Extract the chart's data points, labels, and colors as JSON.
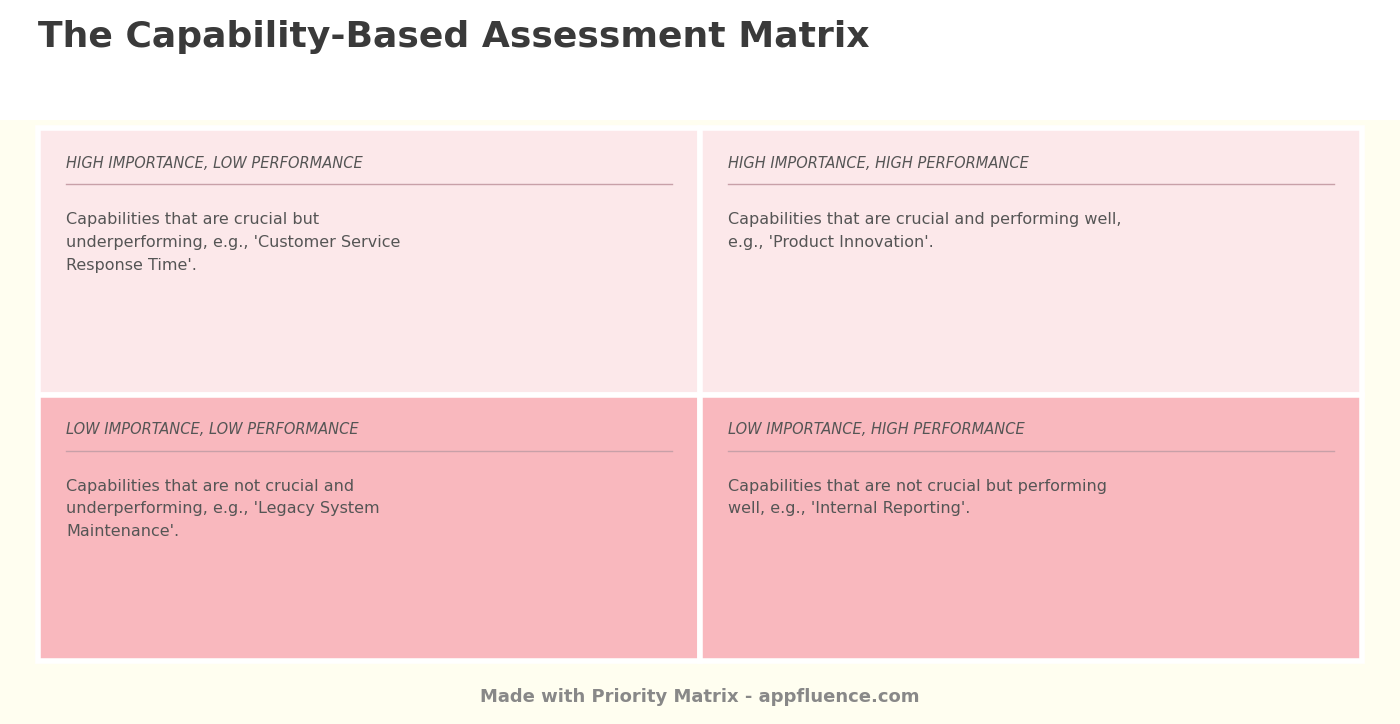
{
  "title": "The Capability-Based Assessment Matrix",
  "title_color": "#3a3a3a",
  "title_fontsize": 26,
  "background_top": "#ffffff",
  "background_bottom": "#fffef0",
  "quadrants": [
    {
      "label": "HIGH IMPORTANCE, LOW PERFORMANCE",
      "text": "Capabilities that are crucial but\nunderperforming, e.g., 'Customer Service\nResponse Time'.",
      "bg": "#fce8ea"
    },
    {
      "label": "HIGH IMPORTANCE, HIGH PERFORMANCE",
      "text": "Capabilities that are crucial and performing well,\ne.g., 'Product Innovation'.",
      "bg": "#fce8ea"
    },
    {
      "label": "LOW IMPORTANCE, LOW PERFORMANCE",
      "text": "Capabilities that are not crucial and\nunderperforming, e.g., 'Legacy System\nMaintenance'.",
      "bg": "#f9b8be"
    },
    {
      "label": "LOW IMPORTANCE, HIGH PERFORMANCE",
      "text": "Capabilities that are not crucial but performing\nwell, e.g., 'Internal Reporting'.",
      "bg": "#f9b8be"
    }
  ],
  "footer_text": "Made with Priority Matrix - appfluence.com",
  "footer_color": "#888888",
  "label_color": "#555555",
  "text_color": "#555555",
  "label_fontsize": 10.5,
  "text_fontsize": 11.5,
  "line_color": "#c8a0a8",
  "border_color": "#ffffff",
  "mid_line_color": "#ffffff"
}
